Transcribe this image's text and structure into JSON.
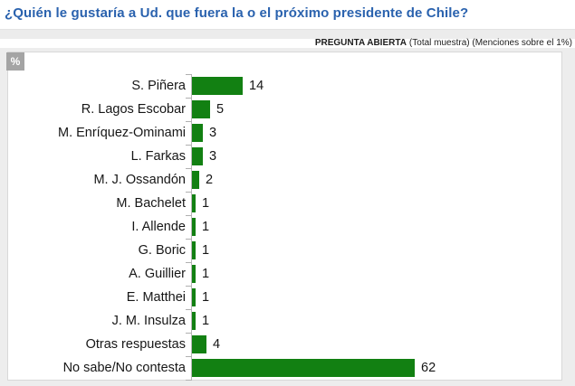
{
  "header": {
    "title": "¿Quién le gustaría a Ud. que fuera la o el próximo presidente de Chile?",
    "note_bold": "PREGUNTA ABIERTA",
    "note_rest": "(Total muestra) (Menciones sobre el 1%)"
  },
  "chart": {
    "unit_label": "%"
  },
  "chart_data": {
    "type": "bar",
    "orientation": "horizontal",
    "title": "¿Quién le gustaría a Ud. que fuera la o el próximo presidente de Chile?",
    "subtitle": "PREGUNTA ABIERTA (Total muestra) (Menciones sobre el 1%)",
    "unit": "%",
    "categories": [
      "S. Piñera",
      "R. Lagos Escobar",
      "M. Enríquez-Ominami",
      "L. Farkas",
      "M. J. Ossandón",
      "M. Bachelet",
      "I. Allende",
      "G. Boric",
      "A. Guillier",
      "E. Matthei",
      "J. M. Insulza",
      "Otras respuestas",
      "No sabe/No contesta"
    ],
    "values": [
      14,
      5,
      3,
      3,
      2,
      1,
      1,
      1,
      1,
      1,
      1,
      4,
      62
    ],
    "data_labels": true,
    "grid": false,
    "legend": false,
    "xlim": null,
    "bar_color": "#128012"
  },
  "colors": {
    "title_blue": "#2a62ae",
    "bar_green": "#128012",
    "badge_gray": "#a4a4a4",
    "band_gray": "#ececec",
    "surround_gray": "#ededed"
  }
}
